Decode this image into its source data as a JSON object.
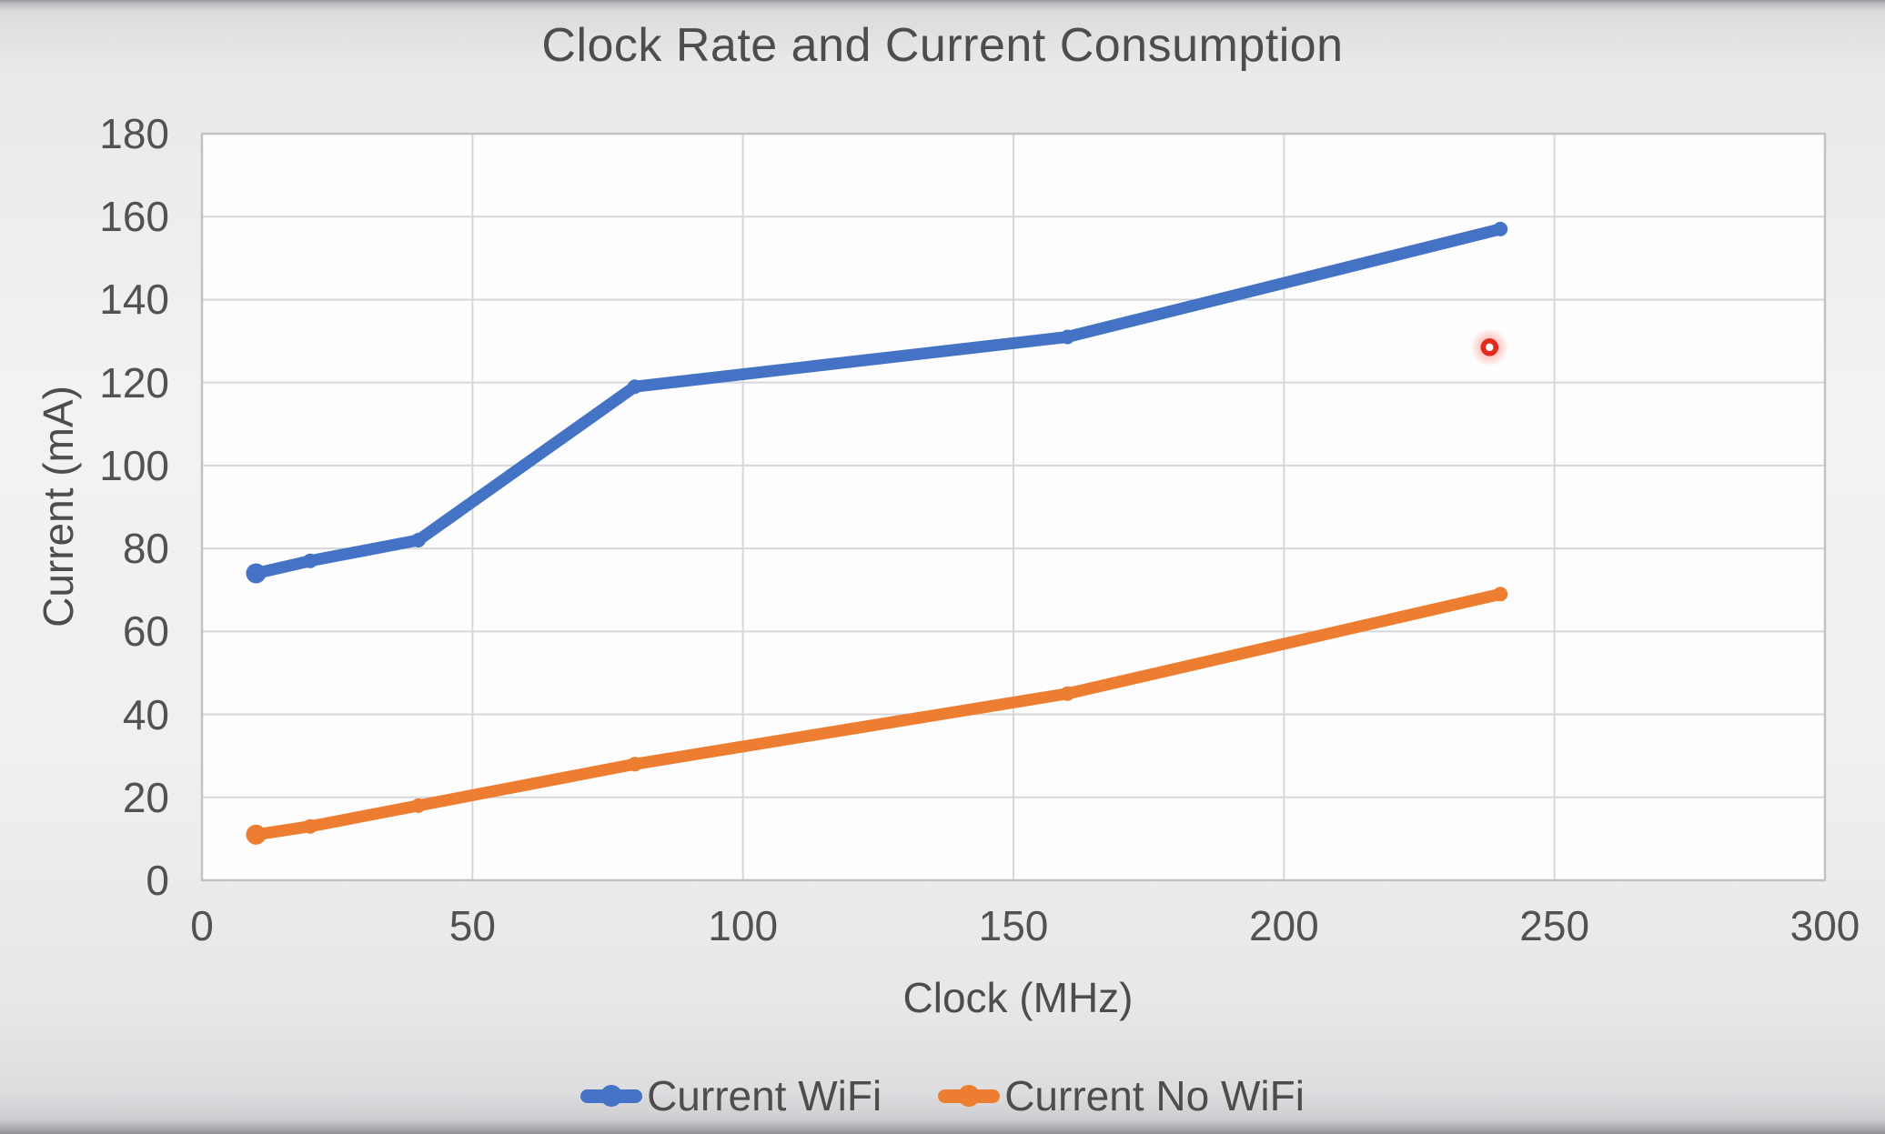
{
  "chart_data": {
    "type": "line",
    "title": "Clock Rate and Current Consumption",
    "xlabel": "Clock (MHz)",
    "ylabel": "Current (mA)",
    "x": [
      10,
      20,
      40,
      80,
      160,
      240
    ],
    "series": [
      {
        "name": "Current WiFi",
        "color": "#4472C4",
        "values": [
          74,
          77,
          82,
          119,
          131,
          157
        ]
      },
      {
        "name": "Current No WiFi",
        "color": "#ED7D31",
        "values": [
          11,
          13,
          18,
          28,
          45,
          69
        ]
      }
    ],
    "x_axis": {
      "min": 0,
      "max": 300,
      "tick_step": 50,
      "ticks": [
        0,
        50,
        100,
        150,
        200,
        250,
        300
      ]
    },
    "y_axis": {
      "min": 0,
      "max": 180,
      "tick_step": 20,
      "ticks": [
        0,
        20,
        40,
        60,
        80,
        100,
        120,
        140,
        160,
        180
      ]
    },
    "grid": true,
    "legend_position": "bottom",
    "colors": {
      "gridline": "#d7d7d9",
      "plot_border": "#c3c3c6",
      "plot_fill": "#fdfdfe",
      "text": "#4d4d4d"
    },
    "annotations": [
      {
        "type": "laser-pointer-dot",
        "x": 238,
        "y": 128.5,
        "color": "#E02B1D"
      }
    ]
  }
}
